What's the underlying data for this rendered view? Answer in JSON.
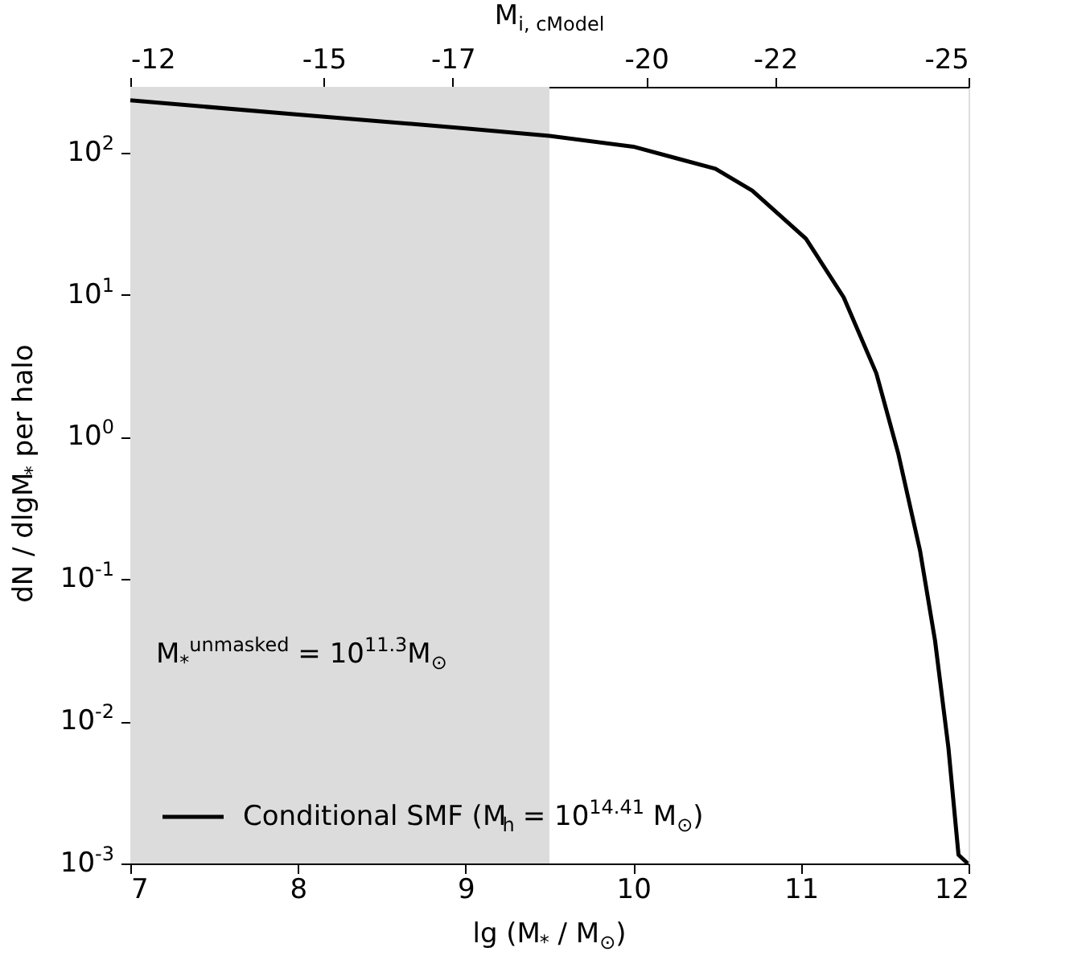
{
  "chart_data": {
    "type": "line",
    "xlabel": "lg (M$_{*}$ / M$_{⊙}$)",
    "ylabel": "dN / dlgM$_{*}$ per halo",
    "x2label": "M$_{i, cModel}$",
    "log": "y",
    "grid": false,
    "legend": "bottom left",
    "marker": "none",
    "line_style": "solid",
    "xlim": [
      7,
      12
    ],
    "xticks": [
      7,
      8,
      9,
      10,
      11,
      12
    ],
    "x2lim": [
      -12,
      -25
    ],
    "x2ticks": [
      -12,
      -15,
      -17,
      -20,
      -22,
      -25
    ],
    "ylim": [
      0.001,
      290
    ],
    "yticks": [
      {
        "value": 0.001,
        "label": "10$^{-3}$"
      },
      {
        "value": 0.01,
        "label": "10$^{-2}$"
      },
      {
        "value": 0.1,
        "label": "10$^{-1}$"
      },
      {
        "value": 1,
        "label": "10$^{0}$"
      },
      {
        "value": 10,
        "label": "10$^{1}$"
      },
      {
        "value": 100,
        "label": "10$^{2}$"
      }
    ],
    "bands": [
      {
        "axis": "x",
        "from": 7,
        "to": 9.5,
        "color": "#dcdcdc"
      }
    ],
    "annotations": [
      "M$_{*}$$^{unmasked}$ = 10$^{11.3}$M$_{⊙}$"
    ],
    "series": [
      {
        "name": "Conditional SMF (M$_{h}$ = 10$^{14.41}$ M$_{⊙}$)",
        "color": "#000000",
        "x": [
          7,
          8,
          9,
          9.5,
          10,
          10.26,
          10.49,
          10.71,
          11.03,
          11.255,
          11.45,
          11.58,
          11.71,
          11.8,
          11.88,
          11.94,
          11.995
        ],
        "values": [
          233,
          185,
          148,
          131,
          110,
          91,
          77,
          54,
          24.8,
          9.6,
          2.8,
          0.77,
          0.16,
          0.037,
          0.0065,
          0.00115,
          0.001
        ]
      }
    ]
  }
}
